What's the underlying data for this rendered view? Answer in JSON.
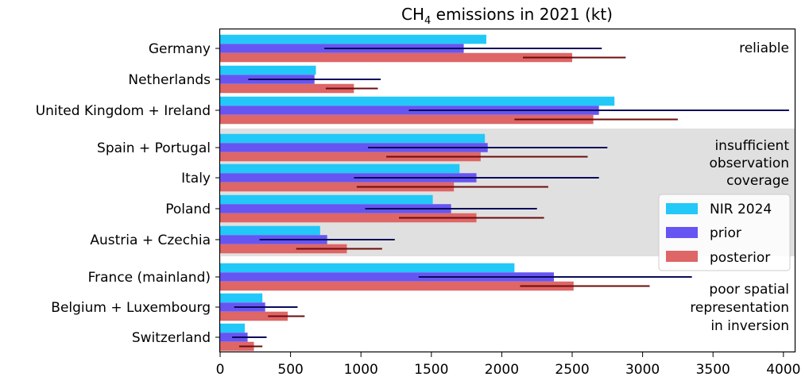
{
  "chart_data": {
    "type": "bar",
    "orientation": "horizontal",
    "title_main": "CH",
    "title_sub": "4",
    "title_rest": " emissions in 2021 (kt)",
    "categories": [
      "Germany",
      "Netherlands",
      "United Kingdom + Ireland",
      "Spain + Portugal",
      "Italy",
      "Poland",
      "Austria + Czechia",
      "France (mainland)",
      "Belgium + Luxembourg",
      "Switzerland"
    ],
    "series": [
      {
        "name": "NIR 2024",
        "color": "#22c8f7",
        "values": [
          1890,
          680,
          2800,
          1880,
          1700,
          1510,
          710,
          2090,
          300,
          175
        ],
        "error_low": null,
        "error_high": null
      },
      {
        "name": "prior",
        "color": "#6655f2",
        "error_color": "#0a0a5a",
        "values": [
          1730,
          670,
          2690,
          1900,
          1820,
          1640,
          760,
          2370,
          320,
          195
        ],
        "error_low": [
          740,
          200,
          1340,
          1050,
          950,
          1030,
          280,
          1410,
          100,
          85
        ],
        "error_high": [
          2710,
          1140,
          4040,
          2750,
          2690,
          2250,
          1240,
          3350,
          550,
          330
        ]
      },
      {
        "name": "posterior",
        "color": "#de6666",
        "error_color": "#6e0b0b",
        "values": [
          2500,
          950,
          2650,
          1850,
          1660,
          1820,
          900,
          2510,
          480,
          240
        ],
        "error_low": [
          2150,
          750,
          2090,
          1180,
          970,
          1270,
          540,
          2130,
          340,
          135
        ],
        "error_high": [
          2880,
          1120,
          3250,
          2610,
          2330,
          2300,
          1150,
          3050,
          600,
          300
        ]
      }
    ],
    "xlim": [
      0,
      4080
    ],
    "xticks": [
      "0",
      "500",
      "1000",
      "1500",
      "2000",
      "2500",
      "3000",
      "3500",
      "4000"
    ],
    "xtick_values": [
      0,
      500,
      1000,
      1500,
      2000,
      2500,
      3000,
      3500,
      4000
    ],
    "groups": [
      {
        "label": "reliable",
        "rows": [
          0,
          1,
          2
        ],
        "shaded": false
      },
      {
        "label_lines": [
          "insufficient",
          "observation",
          "coverage"
        ],
        "rows": [
          3,
          4,
          5,
          6
        ],
        "shaded": true
      },
      {
        "label_lines": [
          "poor spatial",
          "representation",
          "in inversion"
        ],
        "rows": [
          7,
          8,
          9
        ],
        "shaded": false
      }
    ],
    "legend_position": "right"
  }
}
